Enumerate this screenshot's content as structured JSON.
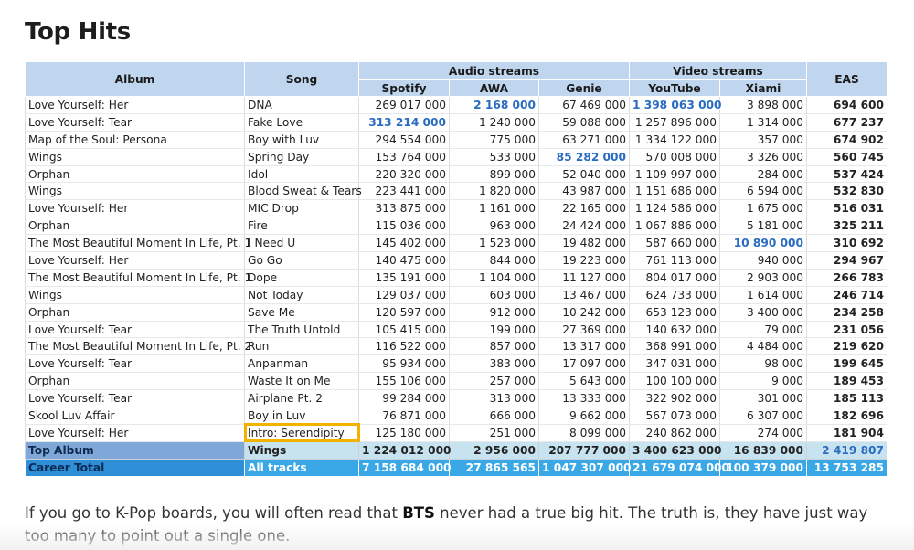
{
  "heading": "Top Hits",
  "table": {
    "headers": {
      "album": "Album",
      "song": "Song",
      "audio_group": "Audio streams",
      "video_group": "Video streams",
      "eas": "EAS",
      "spotify": "Spotify",
      "awa": "AWA",
      "genie": "Genie",
      "youtube": "YouTube",
      "xiami": "Xiami"
    },
    "rows": [
      {
        "album": "Love Yourself: Her",
        "song": "DNA",
        "spotify": "269 017 000",
        "awa": "2 168 000",
        "genie": "67 469 000",
        "youtube": "1 398 063 000",
        "xiami": "3 898 000",
        "eas": "694 600"
      },
      {
        "album": "Love Yourself: Tear",
        "song": "Fake Love",
        "spotify": "313 214 000",
        "awa": "1 240 000",
        "genie": "59 088 000",
        "youtube": "1 257 896 000",
        "xiami": "1 314 000",
        "eas": "677 237"
      },
      {
        "album": "Map of the Soul: Persona",
        "song": "Boy with Luv",
        "spotify": "294 554 000",
        "awa": "775 000",
        "genie": "63 271 000",
        "youtube": "1 334 122 000",
        "xiami": "357 000",
        "eas": "674 902"
      },
      {
        "album": "Wings",
        "song": "Spring Day",
        "spotify": "153 764 000",
        "awa": "533 000",
        "genie": "85 282 000",
        "youtube": "570 008 000",
        "xiami": "3 326 000",
        "eas": "560 745"
      },
      {
        "album": "Orphan",
        "song": "Idol",
        "spotify": "220 320 000",
        "awa": "899 000",
        "genie": "52 040 000",
        "youtube": "1 109 997 000",
        "xiami": "284 000",
        "eas": "537 424"
      },
      {
        "album": "Wings",
        "song": "Blood Sweat & Tears",
        "spotify": "223 441 000",
        "awa": "1 820 000",
        "genie": "43 987 000",
        "youtube": "1 151 686 000",
        "xiami": "6 594 000",
        "eas": "532 830"
      },
      {
        "album": "Love Yourself: Her",
        "song": "MIC Drop",
        "spotify": "313 875 000",
        "awa": "1 161 000",
        "genie": "22 165 000",
        "youtube": "1 124 586 000",
        "xiami": "1 675 000",
        "eas": "516 031"
      },
      {
        "album": "Orphan",
        "song": "Fire",
        "spotify": "115 036 000",
        "awa": "963 000",
        "genie": "24 424 000",
        "youtube": "1 067 886 000",
        "xiami": "5 181 000",
        "eas": "325 211"
      },
      {
        "album": "The Most Beautiful Moment In Life, Pt. 1",
        "song": "I Need U",
        "spotify": "145 402 000",
        "awa": "1 523 000",
        "genie": "19 482 000",
        "youtube": "587 660 000",
        "xiami": "10 890 000",
        "eas": "310 692"
      },
      {
        "album": "Love Yourself: Her",
        "song": "Go Go",
        "spotify": "140 475 000",
        "awa": "844 000",
        "genie": "19 223 000",
        "youtube": "761 113 000",
        "xiami": "940 000",
        "eas": "294 967"
      },
      {
        "album": "The Most Beautiful Moment In Life, Pt. 1",
        "song": "Dope",
        "spotify": "135 191 000",
        "awa": "1 104 000",
        "genie": "11 127 000",
        "youtube": "804 017 000",
        "xiami": "2 903 000",
        "eas": "266 783"
      },
      {
        "album": "Wings",
        "song": "Not Today",
        "spotify": "129 037 000",
        "awa": "603 000",
        "genie": "13 467 000",
        "youtube": "624 733 000",
        "xiami": "1 614 000",
        "eas": "246 714"
      },
      {
        "album": "Orphan",
        "song": "Save Me",
        "spotify": "120 597 000",
        "awa": "912 000",
        "genie": "10 242 000",
        "youtube": "653 123 000",
        "xiami": "3 400 000",
        "eas": "234 258"
      },
      {
        "album": "Love Yourself: Tear",
        "song": "The Truth Untold",
        "spotify": "105 415 000",
        "awa": "199 000",
        "genie": "27 369 000",
        "youtube": "140 632 000",
        "xiami": "79 000",
        "eas": "231 056"
      },
      {
        "album": "The Most Beautiful Moment In Life, Pt. 2",
        "song": "Run",
        "spotify": "116 522 000",
        "awa": "857 000",
        "genie": "13 317 000",
        "youtube": "368 991 000",
        "xiami": "4 484 000",
        "eas": "219 620"
      },
      {
        "album": "Love Yourself: Tear",
        "song": "Anpanman",
        "spotify": "95 934 000",
        "awa": "383 000",
        "genie": "17 097 000",
        "youtube": "347 031 000",
        "xiami": "98 000",
        "eas": "199 645"
      },
      {
        "album": "Orphan",
        "song": "Waste It on Me",
        "spotify": "155 106 000",
        "awa": "257 000",
        "genie": "5 643 000",
        "youtube": "100 100 000",
        "xiami": "9 000",
        "eas": "189 453"
      },
      {
        "album": "Love Yourself: Tear",
        "song": "Airplane Pt. 2",
        "spotify": "99 284 000",
        "awa": "313 000",
        "genie": "13 333 000",
        "youtube": "322 902 000",
        "xiami": "301 000",
        "eas": "185 113"
      },
      {
        "album": "Skool Luv Affair",
        "song": "Boy in Luv",
        "spotify": "76 871 000",
        "awa": "666 000",
        "genie": "9 662 000",
        "youtube": "567 073 000",
        "xiami": "6 307 000",
        "eas": "182 696"
      },
      {
        "album": "Love Yourself: Her",
        "song": "Intro: Serendipity",
        "spotify": "125 180 000",
        "awa": "251 000",
        "genie": "8 099 000",
        "youtube": "240 862 000",
        "xiami": "274 000",
        "eas": "181 904"
      }
    ],
    "top_album": {
      "label": "Top Album",
      "song": "Wings",
      "spotify": "1 224 012 000",
      "awa": "2 956 000",
      "genie": "207 777 000",
      "youtube": "3 400 623 000",
      "xiami": "16 839 000",
      "eas": "2 419 807"
    },
    "career_total": {
      "label": "Career Total",
      "song": "All tracks",
      "spotify": "7 158 684 000",
      "awa": "27 865 565",
      "genie": "1 047 307 000",
      "youtube": "21 679 074 000",
      "xiami": "100 379 000",
      "eas": "13 753 285"
    },
    "highlight_color": "#2a6cc1",
    "box_color": "#f0b400"
  },
  "paragraph": {
    "before": "If you go to K-Pop boards, you will often read that ",
    "bold": "BTS",
    "after": " never had a true big hit. The truth is, they have just way too many to point out a single one."
  }
}
